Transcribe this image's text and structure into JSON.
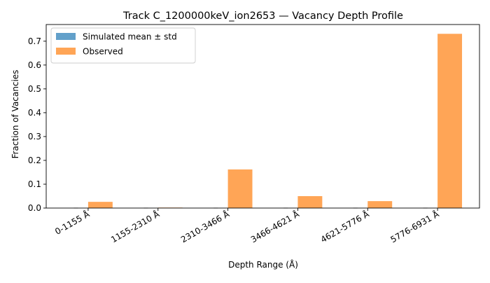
{
  "chart_data": {
    "type": "bar",
    "title": "Track C_1200000keV_ion2653 — Vacancy Depth Profile",
    "xlabel": "Depth Range (Å)",
    "ylabel": "Fraction of Vacancies",
    "categories": [
      "0-1155 Å",
      "1155-2310 Å",
      "2310-3466 Å",
      "3466-4621 Å",
      "4621-5776 Å",
      "5776-6931 Å"
    ],
    "ylim": [
      0,
      0.77
    ],
    "yticks": [
      "0.0",
      "0.1",
      "0.2",
      "0.3",
      "0.4",
      "0.5",
      "0.6",
      "0.7"
    ],
    "grid": false,
    "legend_position": "top-left",
    "series": [
      {
        "name": "Simulated mean ± std",
        "values": [
          0,
          0,
          0,
          0,
          0,
          0
        ],
        "color": "#1f77b4",
        "opacity": 0.7
      },
      {
        "name": "Observed",
        "values": [
          0.026,
          0.002,
          0.162,
          0.05,
          0.029,
          0.731
        ],
        "color": "#ff7f0e",
        "opacity": 0.7
      }
    ]
  }
}
